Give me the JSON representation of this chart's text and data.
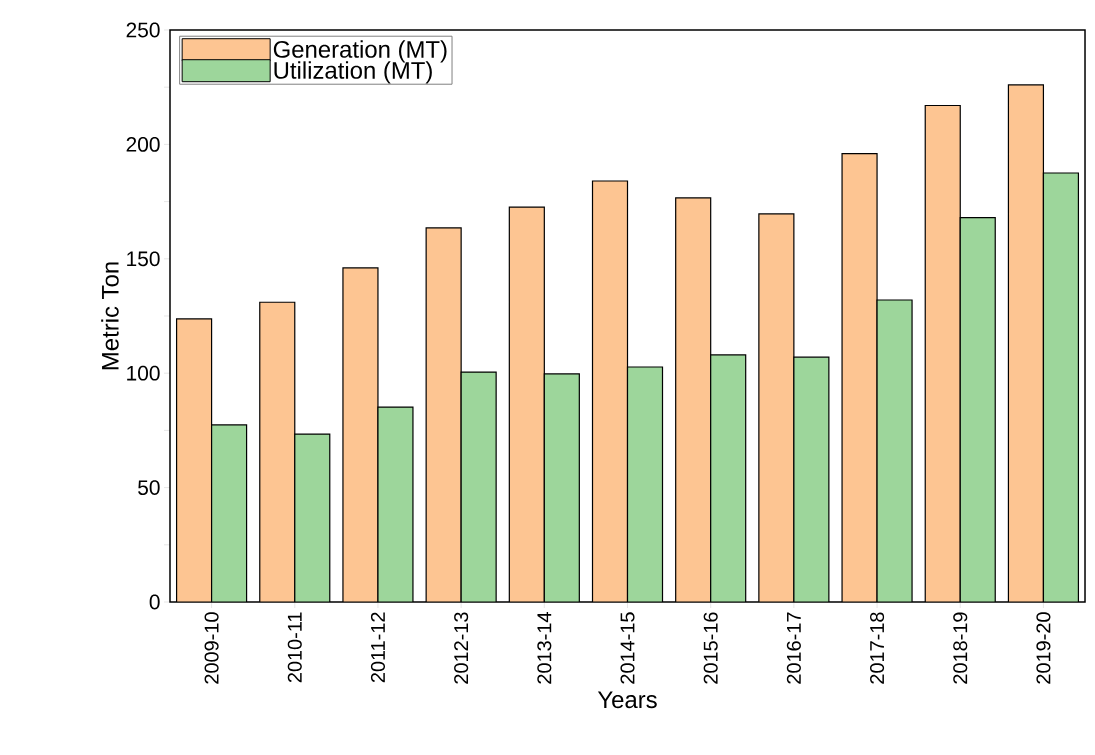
{
  "chart_data": {
    "type": "bar",
    "xlabel": "Years",
    "ylabel": "Metric Ton",
    "categories": [
      "2009-10",
      "2010-11",
      "2011-12",
      "2012-13",
      "2013-14",
      "2014-15",
      "2015-16",
      "2016-17",
      "2017-18",
      "2018-19",
      "2019-20"
    ],
    "series": [
      {
        "name": "Generation (MT)",
        "color": "#fdc592",
        "values": [
          123.7,
          131,
          146,
          163.5,
          172.6,
          184,
          176.6,
          169.6,
          196,
          217,
          226
        ]
      },
      {
        "name": "Utilization (MT)",
        "color": "#9dd69b",
        "values": [
          77.4,
          73.4,
          85.2,
          100.5,
          99.7,
          102.7,
          108,
          107,
          132,
          168,
          187.5
        ]
      }
    ],
    "ylim": [
      0,
      250
    ],
    "yticks": [
      0,
      {
        "value": 25,
        "label": null
      },
      50,
      {
        "value": 75,
        "label": null
      },
      100,
      {
        "value": 125,
        "label": null
      },
      150,
      {
        "value": 175,
        "label": null
      },
      200,
      {
        "value": 225,
        "label": null
      },
      250
    ],
    "grid": false,
    "legend": "top left"
  }
}
